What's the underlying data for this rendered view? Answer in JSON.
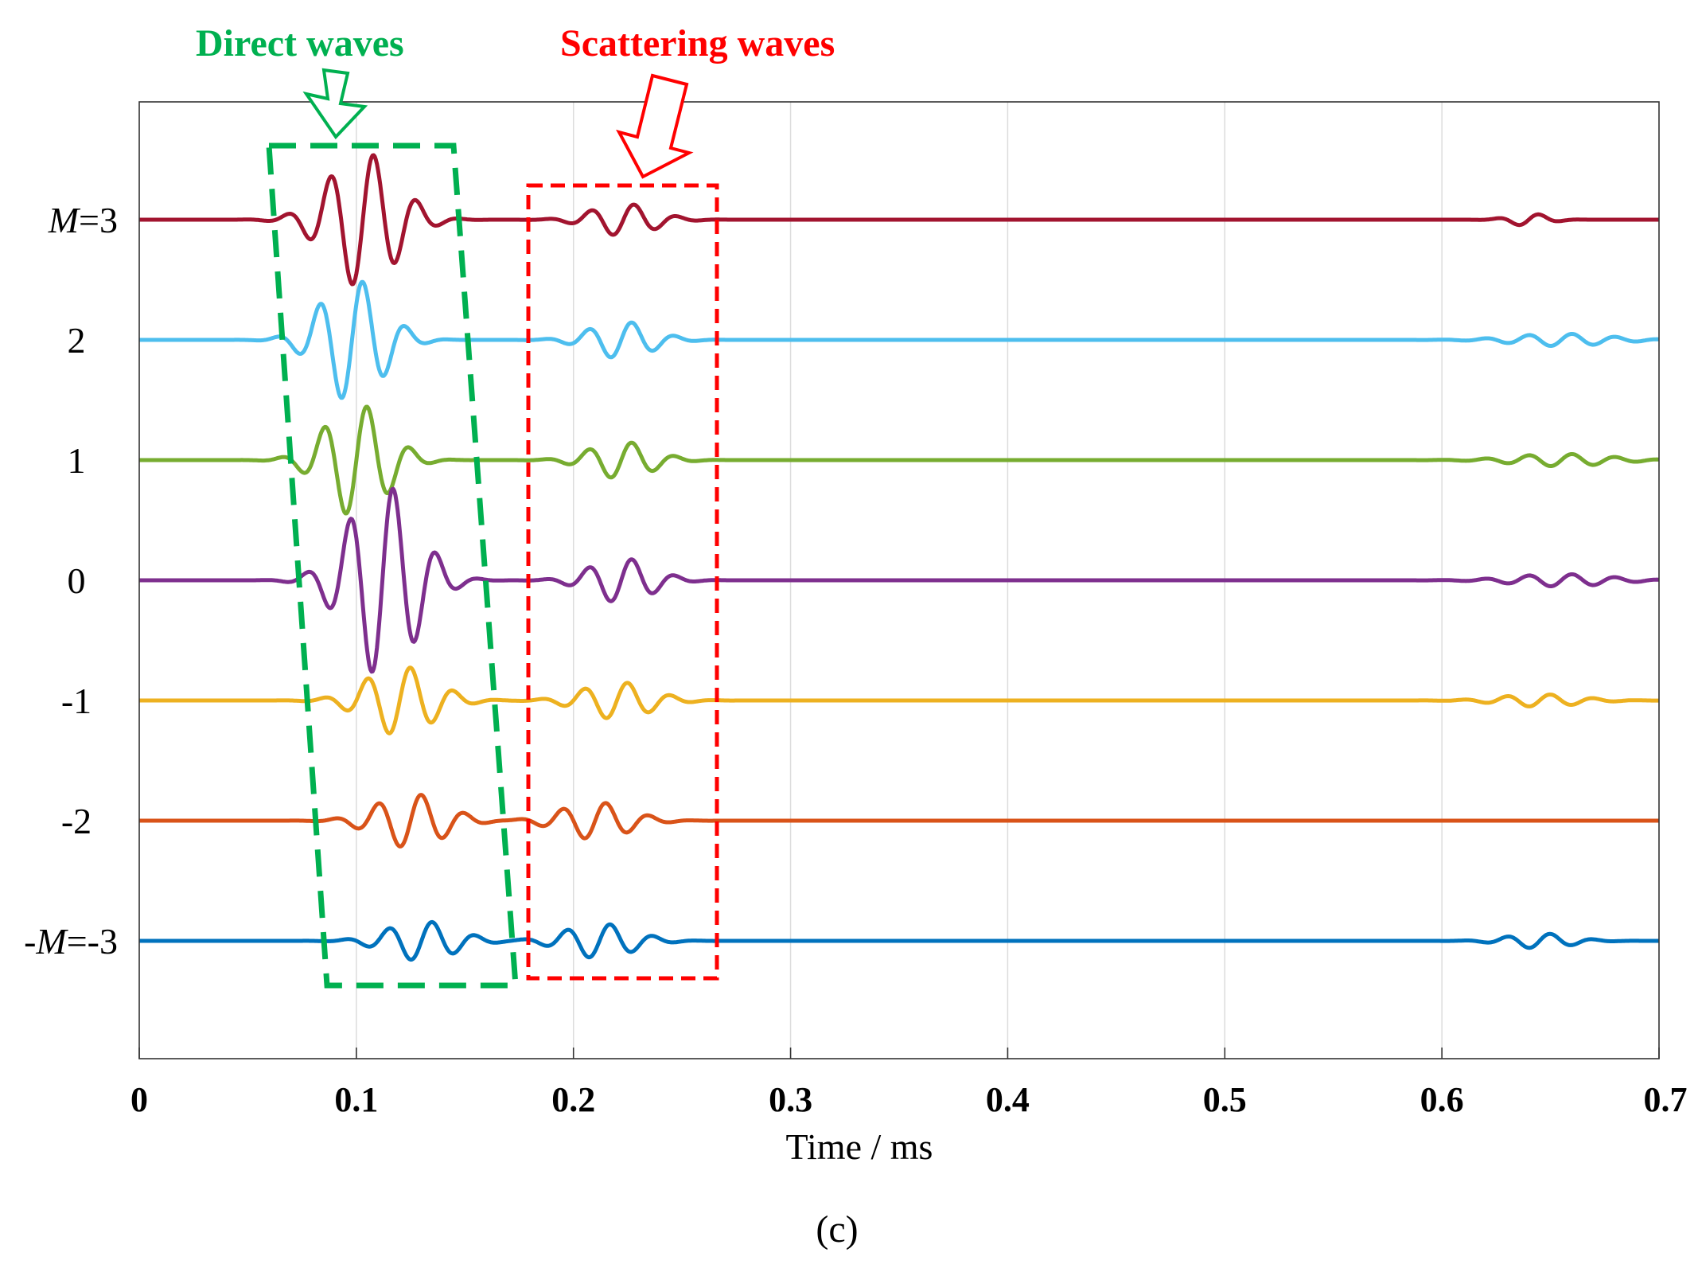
{
  "chart_data": {
    "type": "line",
    "title": "",
    "xlabel": "Time / ms",
    "ylabel": "",
    "panel_label": "(c)",
    "xlim": [
      0,
      0.7
    ],
    "x_ticks": [
      0,
      0.1,
      0.2,
      0.3,
      0.4,
      0.5,
      0.6,
      0.7
    ],
    "x_tick_labels": [
      "0",
      "0.1",
      "0.2",
      "0.3",
      "0.4",
      "0.5",
      "0.6",
      "0.7"
    ],
    "grid": true,
    "series": [
      {
        "name": "M=3",
        "label_prefix": "M",
        "label_suffix": "=3",
        "color": "#a2142f",
        "offset": 3,
        "packets": [
          {
            "t": 0.103,
            "width": 0.022,
            "amp": 0.55
          },
          {
            "t": 0.223,
            "width": 0.02,
            "amp": 0.13
          },
          {
            "t": 0.64,
            "width": 0.012,
            "amp": 0.05
          }
        ]
      },
      {
        "name": "2",
        "label": "2",
        "color": "#4dbeee",
        "offset": 2,
        "packets": [
          {
            "t": 0.098,
            "width": 0.02,
            "amp": 0.5
          },
          {
            "t": 0.222,
            "width": 0.02,
            "amp": 0.15
          },
          {
            "t": 0.655,
            "width": 0.03,
            "amp": 0.05
          }
        ]
      },
      {
        "name": "1",
        "label": "1",
        "color": "#77ac30",
        "offset": 1,
        "packets": [
          {
            "t": 0.1,
            "width": 0.02,
            "amp": 0.46
          },
          {
            "t": 0.222,
            "width": 0.02,
            "amp": 0.15
          },
          {
            "t": 0.655,
            "width": 0.03,
            "amp": 0.05
          }
        ]
      },
      {
        "name": "0",
        "label": "0",
        "color": "#7e2f8e",
        "offset": 0,
        "packets": [
          {
            "t": 0.112,
            "width": 0.022,
            "amp": 0.78
          },
          {
            "t": 0.222,
            "width": 0.02,
            "amp": 0.18
          },
          {
            "t": 0.655,
            "width": 0.03,
            "amp": 0.05
          }
        ]
      },
      {
        "name": "-1",
        "label": "-1",
        "color": "#edb120",
        "offset": -1,
        "packets": [
          {
            "t": 0.12,
            "width": 0.022,
            "amp": 0.28
          },
          {
            "t": 0.22,
            "width": 0.022,
            "amp": 0.15
          },
          {
            "t": 0.645,
            "width": 0.025,
            "amp": 0.05
          }
        ]
      },
      {
        "name": "-2",
        "label": "-2",
        "color": "#d95319",
        "offset": -2,
        "packets": [
          {
            "t": 0.125,
            "width": 0.022,
            "amp": 0.22
          },
          {
            "t": 0.21,
            "width": 0.022,
            "amp": 0.15
          }
        ]
      },
      {
        "name": "-M=-3",
        "label_prefix": "-M",
        "label_suffix": "=-3",
        "color": "#0072bd",
        "offset": -3,
        "packets": [
          {
            "t": 0.13,
            "width": 0.022,
            "amp": 0.16
          },
          {
            "t": 0.212,
            "width": 0.022,
            "amp": 0.14
          },
          {
            "t": 0.645,
            "width": 0.02,
            "amp": 0.06
          }
        ]
      }
    ],
    "carrier_period_ms": 0.02,
    "annotations": [
      {
        "text": "Direct waves",
        "color": "#00b050"
      },
      {
        "text": "Scattering waves",
        "color": "#ff0000"
      }
    ]
  }
}
